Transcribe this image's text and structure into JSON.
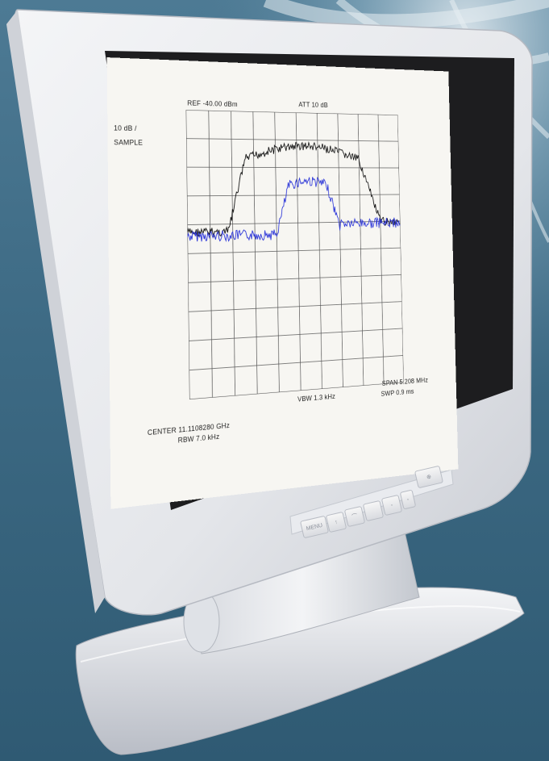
{
  "screen": {
    "scale_label": "10 dB /",
    "mode_label": "SAMPLE",
    "ref_label": "REF  -40.00 dBm",
    "att_label": "ATT   10 dB",
    "center_label": "CENTER  11.1108280 GHz",
    "rbw_label": "RBW   7.0 kHz",
    "vbw_label": "VBW   1.3 kHz",
    "span_label": "SPAN   5.208 MHz",
    "swp_label": "SWP   0.9 ms"
  },
  "panel": {
    "buttons": [
      "MENU",
      "↑",
      "⌒",
      "",
      "◦",
      "◦",
      "⊕"
    ]
  },
  "colors": {
    "trace_black": "#111111",
    "trace_blue": "#2a34d8",
    "grid": "#555555",
    "screen_bg": "#f7f6f2",
    "bezel": "#e9eaee"
  }
}
